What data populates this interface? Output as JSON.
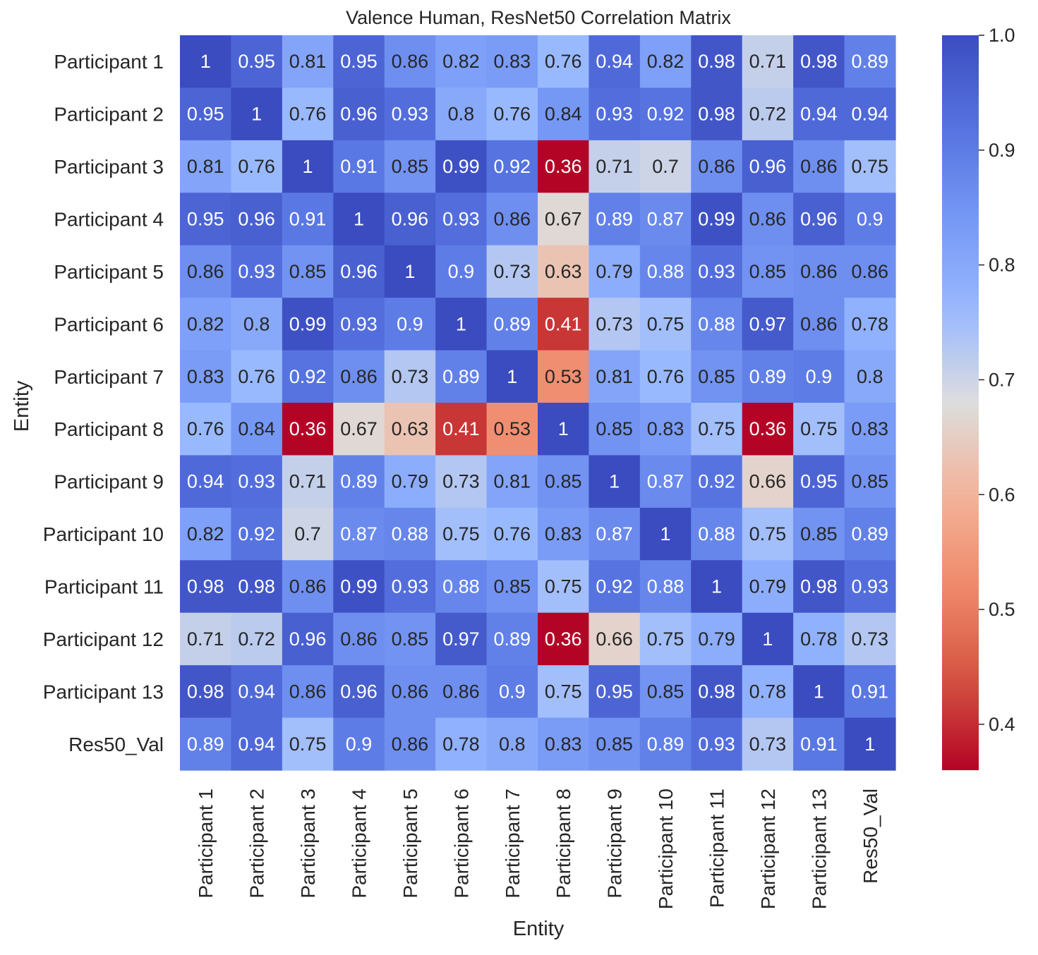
{
  "chart_data": {
    "type": "heatmap",
    "title": "Valence Human, ResNet50 Correlation Matrix",
    "xlabel": "Entity",
    "ylabel": "Entity",
    "labels": [
      "Participant 1",
      "Participant 2",
      "Participant 3",
      "Participant 4",
      "Participant 5",
      "Participant 6",
      "Participant 7",
      "Participant 8",
      "Participant 9",
      "Participant 10",
      "Participant 11",
      "Participant 12",
      "Participant 13",
      "Res50_Val"
    ],
    "values": [
      [
        1,
        0.95,
        0.81,
        0.95,
        0.86,
        0.82,
        0.83,
        0.76,
        0.94,
        0.82,
        0.98,
        0.71,
        0.98,
        0.89
      ],
      [
        0.95,
        1,
        0.76,
        0.96,
        0.93,
        0.8,
        0.76,
        0.84,
        0.93,
        0.92,
        0.98,
        0.72,
        0.94,
        0.94
      ],
      [
        0.81,
        0.76,
        1,
        0.91,
        0.85,
        0.99,
        0.92,
        0.36,
        0.71,
        0.7,
        0.86,
        0.96,
        0.86,
        0.75
      ],
      [
        0.95,
        0.96,
        0.91,
        1,
        0.96,
        0.93,
        0.86,
        0.67,
        0.89,
        0.87,
        0.99,
        0.86,
        0.96,
        0.9
      ],
      [
        0.86,
        0.93,
        0.85,
        0.96,
        1,
        0.9,
        0.73,
        0.63,
        0.79,
        0.88,
        0.93,
        0.85,
        0.86,
        0.86
      ],
      [
        0.82,
        0.8,
        0.99,
        0.93,
        0.9,
        1,
        0.89,
        0.41,
        0.73,
        0.75,
        0.88,
        0.97,
        0.86,
        0.78
      ],
      [
        0.83,
        0.76,
        0.92,
        0.86,
        0.73,
        0.89,
        1,
        0.53,
        0.81,
        0.76,
        0.85,
        0.89,
        0.9,
        0.8
      ],
      [
        0.76,
        0.84,
        0.36,
        0.67,
        0.63,
        0.41,
        0.53,
        1,
        0.85,
        0.83,
        0.75,
        0.36,
        0.75,
        0.83
      ],
      [
        0.94,
        0.93,
        0.71,
        0.89,
        0.79,
        0.73,
        0.81,
        0.85,
        1,
        0.87,
        0.92,
        0.66,
        0.95,
        0.85
      ],
      [
        0.82,
        0.92,
        0.7,
        0.87,
        0.88,
        0.75,
        0.76,
        0.83,
        0.87,
        1,
        0.88,
        0.75,
        0.85,
        0.89
      ],
      [
        0.98,
        0.98,
        0.86,
        0.99,
        0.93,
        0.88,
        0.85,
        0.75,
        0.92,
        0.88,
        1,
        0.79,
        0.98,
        0.93
      ],
      [
        0.71,
        0.72,
        0.96,
        0.86,
        0.85,
        0.97,
        0.89,
        0.36,
        0.66,
        0.75,
        0.79,
        1,
        0.78,
        0.73
      ],
      [
        0.98,
        0.94,
        0.86,
        0.96,
        0.86,
        0.86,
        0.9,
        0.75,
        0.95,
        0.85,
        0.98,
        0.78,
        1,
        0.91
      ],
      [
        0.89,
        0.94,
        0.75,
        0.9,
        0.86,
        0.78,
        0.8,
        0.83,
        0.85,
        0.89,
        0.93,
        0.73,
        0.91,
        1
      ]
    ],
    "colormap": "coolwarm",
    "vmin": 0.36,
    "vmax": 1.0,
    "colorbar_ticks": [
      "1.0",
      "0.9",
      "0.8",
      "0.7",
      "0.6",
      "0.5",
      "0.4"
    ],
    "colorbar_tick_values": [
      1.0,
      0.9,
      0.8,
      0.7,
      0.6,
      0.5,
      0.4
    ],
    "colorbar_position": "right",
    "annotations": true,
    "grid": false
  }
}
